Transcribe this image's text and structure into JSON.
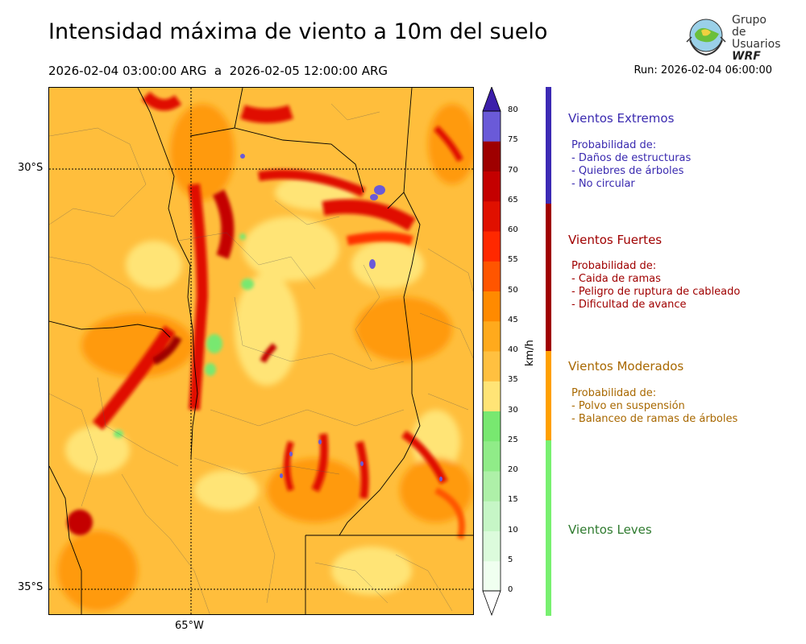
{
  "title": "Intensidad máxima de viento a 10m del suelo",
  "subtitle": "2026-02-04 03:00:00 ARG  a  2026-02-05 12:00:00 ARG",
  "run": "Run: 2026-02-04 06:00:00",
  "logo": {
    "line1": "Grupo de",
    "line2": "Usuarios",
    "line3": "WRF"
  },
  "axes": {
    "lat_labels": [
      "30°S",
      "35°S"
    ],
    "lon_labels": [
      "65°W"
    ]
  },
  "colorbar": {
    "unit": "km/h",
    "ticks": [
      "80",
      "75",
      "70",
      "65",
      "60",
      "55",
      "50",
      "45",
      "40",
      "35",
      "30",
      "25",
      "20",
      "15",
      "10",
      "5",
      "0"
    ],
    "colors": [
      "#f0fff0",
      "#dcfbdc",
      "#c6f6c6",
      "#aef0a8",
      "#90ec88",
      "#78e870",
      "#ffe476",
      "#ffc040",
      "#ffaa1c",
      "#ff8a00",
      "#ff5500",
      "#ff2800",
      "#e01000",
      "#c40000",
      "#9e0000",
      "#6a5ad8",
      "#5040c8",
      "#3c2ab4"
    ],
    "top_color": "#3c1eaa"
  },
  "categories": [
    {
      "title": "Vientos Extremos",
      "color": "#3a2ab0",
      "desc": [
        "Probabilidad de:",
        "- Daños de estructuras",
        "- Quiebres de árboles",
        "- No circular"
      ]
    },
    {
      "title": "Vientos Fuertes",
      "color": "#a00000",
      "desc": [
        "Probabilidad de:",
        "- Caida de ramas",
        "- Peligro de ruptura de cableado",
        "- Dificultad de avance"
      ]
    },
    {
      "title": "Vientos Moderados",
      "color": "#a86800",
      "desc": [
        "Probabilidad de:",
        "- Polvo en suspensión",
        "- Balanceo de ramas de árboles"
      ]
    },
    {
      "title": "Vientos Leves",
      "color": "#2e7a2e",
      "desc": []
    }
  ],
  "bar_colors": {
    "extremos": "#3c2ab4",
    "fuertes": "#a00000",
    "moderados": "#ffa000",
    "leves": "#78f070"
  }
}
